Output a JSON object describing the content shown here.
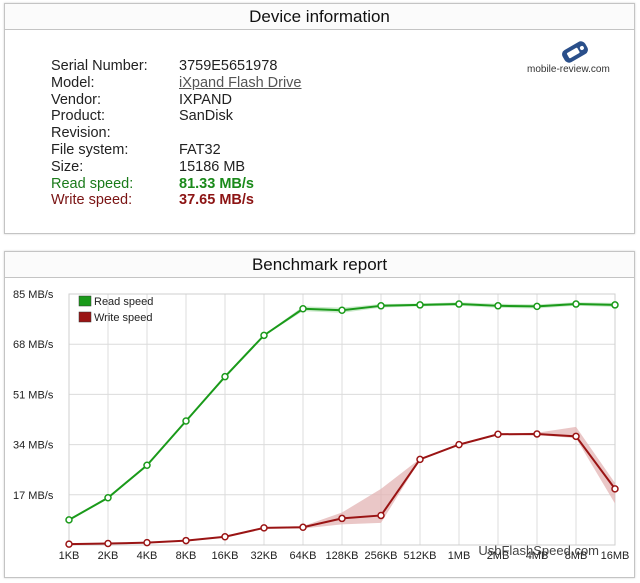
{
  "device_panel": {
    "title": "Device information",
    "rows": [
      {
        "label": "Serial Number:",
        "value": "3759E5651978"
      },
      {
        "label": "Model:",
        "value": "iXpand Flash Drive"
      },
      {
        "label": "Vendor:",
        "value": "IXPAND"
      },
      {
        "label": "Product:",
        "value": "SanDisk"
      },
      {
        "label": "Revision:",
        "value": ""
      },
      {
        "label": "File system:",
        "value": "FAT32"
      },
      {
        "label": "Size:",
        "value": "15186 MB"
      },
      {
        "label": "Read speed:",
        "value": "81.33 MB/s"
      },
      {
        "label": "Write speed:",
        "value": "37.65 MB/s"
      }
    ],
    "logo_text": "mobile-review.com",
    "logo_icon": "phone-icon"
  },
  "bench_panel": {
    "title": "Benchmark report",
    "watermark": "UsbFlashSpeed.com"
  },
  "colors": {
    "read": "#1a9a1a",
    "write": "#9a1414",
    "read_band": "#b9e3b9",
    "write_band": "#e3b4b4"
  },
  "chart_data": {
    "type": "line",
    "categories": [
      "1KB",
      "2KB",
      "4KB",
      "8KB",
      "16KB",
      "32KB",
      "64KB",
      "128KB",
      "256KB",
      "512KB",
      "1MB",
      "2MB",
      "4MB",
      "8MB",
      "16MB"
    ],
    "y_tick_labels": [
      "85 MB/s",
      "68 MB/s",
      "51 MB/s",
      "34 MB/s",
      "17 MB/s"
    ],
    "ylim": [
      0,
      85
    ],
    "grid": true,
    "legend_position": "top-left",
    "series": [
      {
        "name": "Read speed",
        "values": [
          8.5,
          16,
          27,
          42,
          57,
          71,
          80,
          79.5,
          81,
          81.3,
          81.6,
          81,
          80.8,
          81.6,
          81.3
        ],
        "band_low": [
          8.3,
          15.8,
          26.8,
          41.8,
          56.8,
          70.8,
          79.2,
          78.6,
          80.4,
          80.8,
          81.0,
          80.3,
          80.1,
          81.0,
          80.6
        ],
        "band_high": [
          8.7,
          16.2,
          27.2,
          42.2,
          57.2,
          71.2,
          80.8,
          80.4,
          81.6,
          81.8,
          82.2,
          81.7,
          81.5,
          82.2,
          82.0
        ]
      },
      {
        "name": "Write speed",
        "values": [
          0.3,
          0.5,
          0.8,
          1.5,
          2.8,
          5.8,
          6,
          9,
          10,
          29,
          34,
          37.5,
          37.6,
          36.8,
          19
        ],
        "band_low": [
          0.3,
          0.5,
          0.8,
          1.4,
          2.6,
          5.6,
          5.6,
          7,
          7.5,
          28.8,
          33.8,
          37.2,
          37.2,
          36.2,
          14
        ],
        "band_high": [
          0.3,
          0.5,
          0.8,
          1.6,
          3.0,
          6.0,
          6.4,
          11,
          19,
          29.2,
          34.2,
          37.8,
          38.0,
          40,
          21
        ]
      }
    ]
  }
}
